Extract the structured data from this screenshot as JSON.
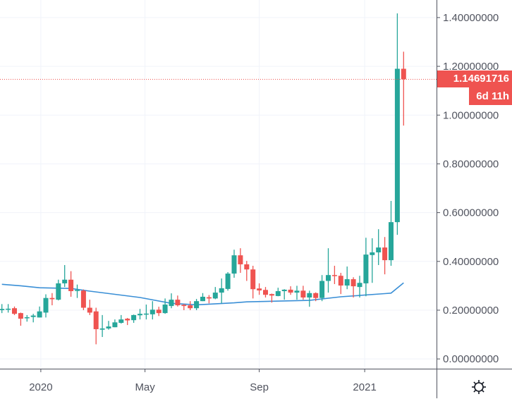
{
  "chart_data": {
    "type": "candlestick",
    "title": "",
    "interval": "weekly",
    "colors": {
      "up": "#26a69a",
      "down": "#ef5350",
      "ma": "#3a8fd6",
      "grid": "#f0f3fa",
      "axis": "#50535e"
    },
    "ylim": [
      -0.04,
      1.472
    ],
    "y_ticks": [
      {
        "value": 0.0,
        "label": "0.00000000"
      },
      {
        "value": 0.2,
        "label": "0.20000000"
      },
      {
        "value": 0.4,
        "label": "0.40000000"
      },
      {
        "value": 0.6,
        "label": "0.60000000"
      },
      {
        "value": 0.8,
        "label": "0.80000000"
      },
      {
        "value": 1.0,
        "label": "1.00000000"
      },
      {
        "value": 1.2,
        "label": "1.20000000"
      },
      {
        "value": 1.4,
        "label": "1.40000000"
      }
    ],
    "x_ticks": [
      {
        "index": 6.2,
        "label": "2020"
      },
      {
        "index": 22.8,
        "label": "May"
      },
      {
        "index": 41.0,
        "label": "Sep"
      },
      {
        "index": 57.8,
        "label": "2021"
      }
    ],
    "candles": [
      [
        0.2,
        0.225,
        0.188,
        0.205
      ],
      [
        0.203,
        0.225,
        0.19,
        0.206
      ],
      [
        0.208,
        0.215,
        0.18,
        0.185
      ],
      [
        0.188,
        0.19,
        0.136,
        0.165
      ],
      [
        0.168,
        0.18,
        0.153,
        0.171
      ],
      [
        0.172,
        0.185,
        0.15,
        0.178
      ],
      [
        0.17,
        0.215,
        0.17,
        0.195
      ],
      [
        0.19,
        0.265,
        0.17,
        0.25
      ],
      [
        0.25,
        0.27,
        0.22,
        0.245
      ],
      [
        0.243,
        0.325,
        0.24,
        0.31
      ],
      [
        0.31,
        0.385,
        0.295,
        0.325
      ],
      [
        0.325,
        0.36,
        0.255,
        0.278
      ],
      [
        0.28,
        0.305,
        0.25,
        0.283
      ],
      [
        0.28,
        0.285,
        0.2,
        0.21
      ],
      [
        0.21,
        0.243,
        0.18,
        0.19
      ],
      [
        0.195,
        0.21,
        0.06,
        0.122
      ],
      [
        0.12,
        0.18,
        0.09,
        0.125
      ],
      [
        0.125,
        0.156,
        0.12,
        0.133
      ],
      [
        0.13,
        0.162,
        0.13,
        0.15
      ],
      [
        0.148,
        0.18,
        0.145,
        0.162
      ],
      [
        0.165,
        0.168,
        0.139,
        0.158
      ],
      [
        0.159,
        0.182,
        0.148,
        0.18
      ],
      [
        0.179,
        0.205,
        0.162,
        0.185
      ],
      [
        0.185,
        0.223,
        0.162,
        0.186
      ],
      [
        0.183,
        0.237,
        0.162,
        0.202
      ],
      [
        0.202,
        0.214,
        0.176,
        0.188
      ],
      [
        0.188,
        0.248,
        0.185,
        0.223
      ],
      [
        0.217,
        0.269,
        0.208,
        0.243
      ],
      [
        0.243,
        0.26,
        0.215,
        0.22
      ],
      [
        0.222,
        0.225,
        0.2,
        0.217
      ],
      [
        0.22,
        0.237,
        0.2,
        0.208
      ],
      [
        0.208,
        0.246,
        0.2,
        0.237
      ],
      [
        0.237,
        0.27,
        0.237,
        0.255
      ],
      [
        0.253,
        0.262,
        0.228,
        0.248
      ],
      [
        0.248,
        0.295,
        0.245,
        0.272
      ],
      [
        0.272,
        0.33,
        0.228,
        0.29
      ],
      [
        0.287,
        0.356,
        0.28,
        0.35
      ],
      [
        0.35,
        0.448,
        0.333,
        0.425
      ],
      [
        0.425,
        0.454,
        0.353,
        0.388
      ],
      [
        0.388,
        0.402,
        0.32,
        0.367
      ],
      [
        0.367,
        0.382,
        0.248,
        0.286
      ],
      [
        0.289,
        0.31,
        0.263,
        0.281
      ],
      [
        0.283,
        0.295,
        0.252,
        0.263
      ],
      [
        0.266,
        0.268,
        0.231,
        0.26
      ],
      [
        0.258,
        0.292,
        0.257,
        0.278
      ],
      [
        0.278,
        0.286,
        0.243,
        0.284
      ],
      [
        0.284,
        0.298,
        0.263,
        0.272
      ],
      [
        0.272,
        0.3,
        0.243,
        0.28
      ],
      [
        0.28,
        0.3,
        0.243,
        0.252
      ],
      [
        0.252,
        0.28,
        0.214,
        0.27
      ],
      [
        0.27,
        0.273,
        0.237,
        0.25
      ],
      [
        0.25,
        0.344,
        0.237,
        0.32
      ],
      [
        0.32,
        0.454,
        0.272,
        0.344
      ],
      [
        0.344,
        0.382,
        0.307,
        0.341
      ],
      [
        0.341,
        0.353,
        0.266,
        0.301
      ],
      [
        0.301,
        0.379,
        0.286,
        0.327
      ],
      [
        0.327,
        0.335,
        0.252,
        0.298
      ],
      [
        0.295,
        0.341,
        0.252,
        0.312
      ],
      [
        0.31,
        0.497,
        0.257,
        0.428
      ],
      [
        0.426,
        0.495,
        0.312,
        0.437
      ],
      [
        0.437,
        0.532,
        0.385,
        0.457
      ],
      [
        0.457,
        0.5,
        0.347,
        0.405
      ],
      [
        0.405,
        0.648,
        0.382,
        0.561
      ],
      [
        0.561,
        1.417,
        0.509,
        1.19
      ],
      [
        1.19,
        1.26,
        0.957,
        1.14691716
      ]
    ],
    "ma_series": [
      [
        0,
        0.306
      ],
      [
        3,
        0.3
      ],
      [
        6,
        0.292
      ],
      [
        11,
        0.289
      ],
      [
        14,
        0.278
      ],
      [
        22,
        0.252
      ],
      [
        27,
        0.228
      ],
      [
        31,
        0.222
      ],
      [
        37,
        0.23
      ],
      [
        39,
        0.234
      ],
      [
        49,
        0.24
      ],
      [
        54,
        0.255
      ],
      [
        61,
        0.268
      ],
      [
        62,
        0.27
      ],
      [
        64,
        0.312
      ]
    ],
    "last_price": 1.14691716,
    "last_price_label": "1.14691716",
    "countdown_label": "6d 11h"
  },
  "icons": {
    "settings": "gear-icon"
  }
}
